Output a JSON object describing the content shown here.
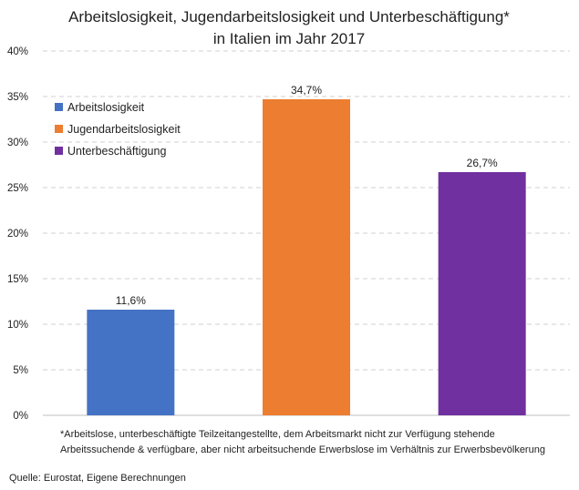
{
  "chart_data": {
    "type": "bar",
    "title": [
      "Arbeitslosigkeit, Jugendarbeitslosigkeit und Unterbeschäftigung*",
      "in Italien im Jahr 2017"
    ],
    "categories": [
      "Arbeitslosigkeit",
      "Jugendarbeitslosigkeit",
      "Unterbeschäftigung"
    ],
    "values": [
      11.6,
      34.7,
      26.7
    ],
    "value_labels": [
      "11,6%",
      "34,7%",
      "26,7%"
    ],
    "colors": [
      "#4472C4",
      "#ED7D31",
      "#7030A0"
    ],
    "ylim": [
      0,
      40
    ],
    "yticks": [
      {
        "value": 0,
        "label": "0%"
      },
      {
        "value": 5,
        "label": "5%"
      },
      {
        "value": 10,
        "label": "10%"
      },
      {
        "value": 15,
        "label": "15%"
      },
      {
        "value": 20,
        "label": "20%"
      },
      {
        "value": 25,
        "label": "25%"
      },
      {
        "value": 30,
        "label": "30%"
      },
      {
        "value": 35,
        "label": "35%"
      },
      {
        "value": 40,
        "label": "40%"
      }
    ],
    "grid": true,
    "legend": {
      "placement": "top-left",
      "entries": [
        "Arbeitslosigkeit",
        "Jugendarbeitslosigkeit",
        "Unterbeschäftigung"
      ]
    },
    "footnote": [
      "*Arbeitslose, unterbeschäftigte Teilzeitangestellte, dem Arbeitsmarkt nicht zur Verfügung stehende",
      "Arbeitssuchende & verfügbare, aber nicht arbeitsuchende Erwerbslose im Verhältnis zur Erwerbsbevölkerung"
    ],
    "source": "Quelle: Eurostat, Eigene Berechnungen"
  }
}
